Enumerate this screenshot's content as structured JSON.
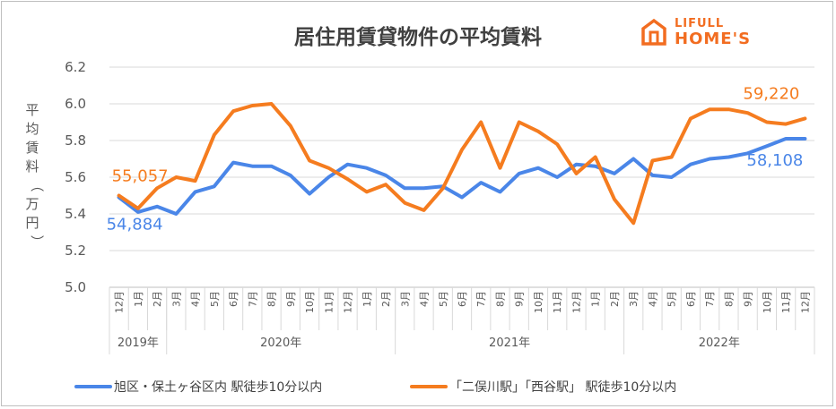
{
  "logo": {
    "line1": "LIFULL",
    "line2": "HOME'S"
  },
  "chart_data": {
    "type": "line",
    "title": "居住用賃貸物件の平均賃料",
    "ylabel": "平均賃料（万円）",
    "ylim": [
      5.0,
      6.2
    ],
    "yticks": [
      "5.0",
      "5.2",
      "5.4",
      "5.6",
      "5.8",
      "6.0",
      "6.2"
    ],
    "grid": true,
    "legend_position": "bottom",
    "categories": [
      "12月",
      "1月",
      "2月",
      "3月",
      "4月",
      "5月",
      "6月",
      "7月",
      "8月",
      "9月",
      "10月",
      "11月",
      "12月",
      "1月",
      "2月",
      "3月",
      "4月",
      "5月",
      "6月",
      "7月",
      "8月",
      "9月",
      "10月",
      "11月",
      "12月",
      "1月",
      "2月",
      "3月",
      "4月",
      "5月",
      "6月",
      "7月",
      "8月",
      "9月",
      "10月",
      "11月",
      "12月"
    ],
    "year_groups": [
      {
        "label": "2019年",
        "count": 3
      },
      {
        "label": "2020年",
        "count": 12
      },
      {
        "label": "2021年",
        "count": 12
      },
      {
        "label": "2022年",
        "count": 10
      }
    ],
    "series": [
      {
        "name": "旭区・保土ヶ谷区内 駅徒歩10分以内",
        "color": "#4a86e8",
        "values": [
          5.49,
          5.41,
          5.44,
          5.4,
          5.52,
          5.55,
          5.68,
          5.66,
          5.66,
          5.61,
          5.51,
          5.6,
          5.67,
          5.65,
          5.61,
          5.54,
          5.54,
          5.55,
          5.49,
          5.57,
          5.52,
          5.62,
          5.65,
          5.6,
          5.67,
          5.66,
          5.62,
          5.7,
          5.61,
          5.6,
          5.67,
          5.7,
          5.71,
          5.73,
          5.77,
          5.81,
          5.81
        ]
      },
      {
        "name": "「二俣川駅」「西谷駅」 駅徒歩10分以内",
        "color": "#f57c1f",
        "values": [
          5.5,
          5.43,
          5.54,
          5.6,
          5.58,
          5.83,
          5.96,
          5.99,
          6.0,
          5.88,
          5.69,
          5.65,
          5.59,
          5.52,
          5.56,
          5.46,
          5.42,
          5.54,
          5.75,
          5.9,
          5.65,
          5.9,
          5.85,
          5.78,
          5.62,
          5.71,
          5.48,
          5.35,
          5.69,
          5.71,
          5.92,
          5.97,
          5.97,
          5.95,
          5.9,
          5.89,
          5.92
        ]
      }
    ],
    "annotations": [
      {
        "text": "55,057",
        "series": 1,
        "point": 0
      },
      {
        "text": "54,884",
        "series": 0,
        "point": 0
      },
      {
        "text": "59,220",
        "series": 1,
        "point": 36
      },
      {
        "text": "58,108",
        "series": 0,
        "point": 36
      }
    ]
  }
}
